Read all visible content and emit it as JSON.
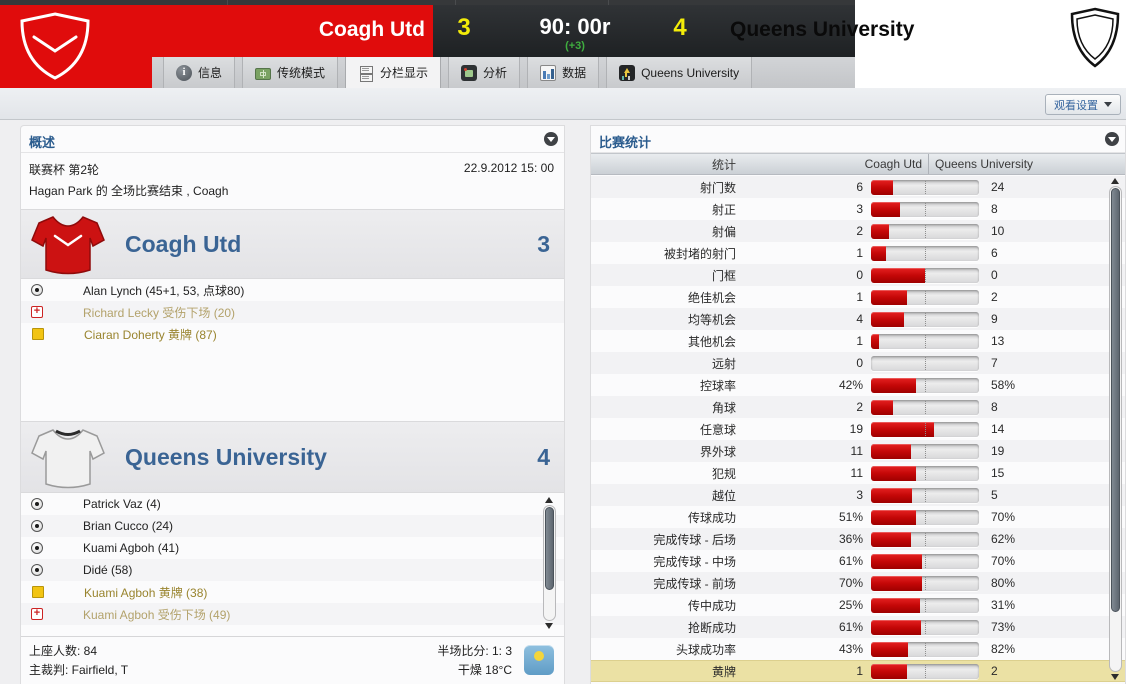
{
  "scoreboard": {
    "home_team": "Coagh Utd",
    "home_score": "3",
    "clock": "90: 00r",
    "added_time": "(+3)",
    "away_score": "4",
    "away_team": "Queens University"
  },
  "tabs": [
    {
      "label": "信息",
      "icon": "info-icon",
      "selected": false
    },
    {
      "label": "传统模式",
      "icon": "pitch-icon",
      "selected": false
    },
    {
      "label": "分栏显示",
      "icon": "split-view-icon",
      "selected": true
    },
    {
      "label": "分析",
      "icon": "analysis-icon",
      "selected": false
    },
    {
      "label": "数据",
      "icon": "data-icon",
      "selected": false
    },
    {
      "label": "Queens University",
      "icon": "team-icon",
      "selected": false
    }
  ],
  "subbar": {
    "view_settings_label": "观看设置"
  },
  "overview": {
    "title": "概述",
    "competition": "联赛杯 第2轮",
    "datetime": "22.9.2012 15: 00",
    "status_line": "Hagan Park 的 全场比赛结束 , Coagh",
    "home": {
      "name": "Coagh Utd",
      "score": "3",
      "shirt_color": "#cc1212",
      "events": [
        {
          "icon": "goal-icon",
          "text": "Alan Lynch (45+1, 53, 点球80)"
        },
        {
          "icon": "injury-icon",
          "text": "Richard Lecky 受伤下场 (20)"
        },
        {
          "icon": "yellow-card-icon",
          "text": "Ciaran Doherty 黄牌 (87)"
        }
      ]
    },
    "away": {
      "name": "Queens University",
      "score": "4",
      "shirt_color": "#f1f1f1",
      "events": [
        {
          "icon": "goal-icon",
          "text": "Patrick Vaz (4)"
        },
        {
          "icon": "goal-icon",
          "text": "Brian Cucco (24)"
        },
        {
          "icon": "goal-icon",
          "text": "Kuami Agboh (41)"
        },
        {
          "icon": "goal-icon",
          "text": "Didé (58)"
        },
        {
          "icon": "yellow-card-icon",
          "text": "Kuami Agboh 黄牌 (38)"
        },
        {
          "icon": "injury-icon",
          "text": "Kuami Agboh 受伤下场 (49)"
        }
      ]
    },
    "footer": {
      "attendance": "上座人数: 84",
      "referee": "主裁判: Fairfield, T",
      "halftime": "半场比分: 1: 3",
      "weather": "干燥 18°C",
      "weather_icon": "sun-icon"
    }
  },
  "stats": {
    "title": "比赛统计",
    "header": {
      "stat": "统计",
      "home": "Coagh Utd",
      "away": "Queens University"
    },
    "bar_color": "#c40707",
    "highlight_color": "#ebe1a4",
    "rows": [
      {
        "label": "射门数",
        "home": "6",
        "away": "24",
        "home_share": 20
      },
      {
        "label": "射正",
        "home": "3",
        "away": "8",
        "home_share": 27
      },
      {
        "label": "射偏",
        "home": "2",
        "away": "10",
        "home_share": 17
      },
      {
        "label": "被封堵的射门",
        "home": "1",
        "away": "6",
        "home_share": 14
      },
      {
        "label": "门框",
        "home": "0",
        "away": "0",
        "home_share": 50
      },
      {
        "label": "绝佳机会",
        "home": "1",
        "away": "2",
        "home_share": 33
      },
      {
        "label": "均等机会",
        "home": "4",
        "away": "9",
        "home_share": 31
      },
      {
        "label": "其他机会",
        "home": "1",
        "away": "13",
        "home_share": 7
      },
      {
        "label": "远射",
        "home": "0",
        "away": "7",
        "home_share": 0
      },
      {
        "label": "控球率",
        "home": "42%",
        "away": "58%",
        "home_share": 42
      },
      {
        "label": "角球",
        "home": "2",
        "away": "8",
        "home_share": 20
      },
      {
        "label": "任意球",
        "home": "19",
        "away": "14",
        "home_share": 58
      },
      {
        "label": "界外球",
        "home": "11",
        "away": "19",
        "home_share": 37
      },
      {
        "label": "犯规",
        "home": "11",
        "away": "15",
        "home_share": 42
      },
      {
        "label": "越位",
        "home": "3",
        "away": "5",
        "home_share": 38
      },
      {
        "label": "传球成功",
        "home": "51%",
        "away": "70%",
        "home_share": 42
      },
      {
        "label": "完成传球 - 后场",
        "home": "36%",
        "away": "62%",
        "home_share": 37
      },
      {
        "label": "完成传球 - 中场",
        "home": "61%",
        "away": "70%",
        "home_share": 47
      },
      {
        "label": "完成传球 - 前场",
        "home": "70%",
        "away": "80%",
        "home_share": 47
      },
      {
        "label": "传中成功",
        "home": "25%",
        "away": "31%",
        "home_share": 45
      },
      {
        "label": "抢断成功",
        "home": "61%",
        "away": "73%",
        "home_share": 46
      },
      {
        "label": "头球成功率",
        "home": "43%",
        "away": "82%",
        "home_share": 34
      },
      {
        "label": "黄牌",
        "home": "1",
        "away": "2",
        "home_share": 33,
        "highlight": true
      }
    ]
  }
}
